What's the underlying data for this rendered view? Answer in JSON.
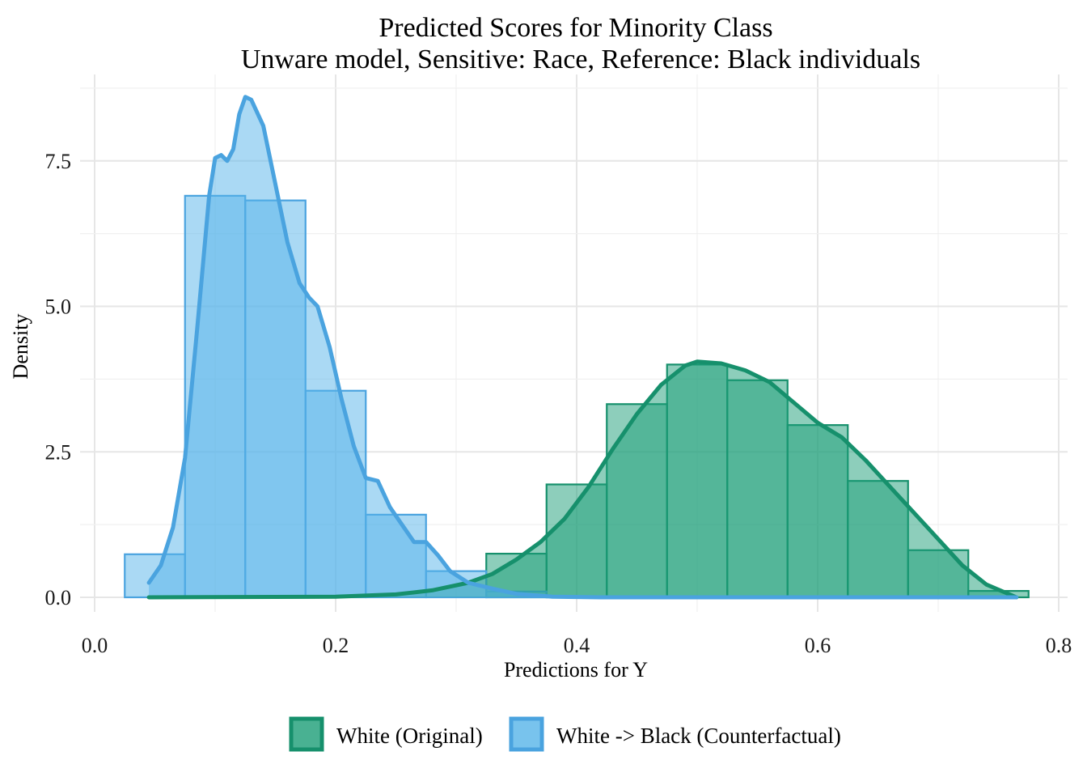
{
  "chart_data": {
    "type": "histogram",
    "title": "Predicted Scores for Minority Class",
    "subtitle": "Unware model, Sensitive: Race, Reference: Black individuals",
    "xlabel": "Predictions for Y",
    "ylabel": "Density",
    "xlim": [
      0.0,
      0.8
    ],
    "ylim": [
      0.0,
      8.6
    ],
    "x_ticks": [
      {
        "value": 0.0,
        "label": "0.0"
      },
      {
        "value": 0.2,
        "label": "0.2"
      },
      {
        "value": 0.4,
        "label": "0.4"
      },
      {
        "value": 0.6,
        "label": "0.6"
      },
      {
        "value": 0.8,
        "label": "0.8"
      }
    ],
    "y_ticks": [
      {
        "value": 0.0,
        "label": "0.0"
      },
      {
        "value": 2.5,
        "label": "2.5"
      },
      {
        "value": 5.0,
        "label": "5.0"
      },
      {
        "value": 7.5,
        "label": "7.5"
      }
    ],
    "grid": true,
    "legend_position": "bottom",
    "bin_width": 0.05,
    "series": [
      {
        "name": "White (Original)",
        "fill": "#1b9e77",
        "line": "#16906c",
        "bins": [
          {
            "x0": 0.325,
            "x1": 0.375,
            "density": 0.75
          },
          {
            "x0": 0.375,
            "x1": 0.425,
            "density": 1.94
          },
          {
            "x0": 0.425,
            "x1": 0.475,
            "density": 3.32
          },
          {
            "x0": 0.475,
            "x1": 0.525,
            "density": 4.0
          },
          {
            "x0": 0.525,
            "x1": 0.575,
            "density": 3.73
          },
          {
            "x0": 0.575,
            "x1": 0.625,
            "density": 2.96
          },
          {
            "x0": 0.625,
            "x1": 0.675,
            "density": 2.0
          },
          {
            "x0": 0.675,
            "x1": 0.725,
            "density": 0.81
          },
          {
            "x0": 0.725,
            "x1": 0.775,
            "density": 0.11
          }
        ],
        "density_curve": [
          [
            0.045,
            0.0
          ],
          [
            0.2,
            0.01
          ],
          [
            0.25,
            0.05
          ],
          [
            0.28,
            0.12
          ],
          [
            0.31,
            0.25
          ],
          [
            0.33,
            0.4
          ],
          [
            0.35,
            0.65
          ],
          [
            0.37,
            0.95
          ],
          [
            0.39,
            1.35
          ],
          [
            0.41,
            1.9
          ],
          [
            0.43,
            2.55
          ],
          [
            0.45,
            3.15
          ],
          [
            0.47,
            3.65
          ],
          [
            0.49,
            3.98
          ],
          [
            0.5,
            4.05
          ],
          [
            0.52,
            4.02
          ],
          [
            0.54,
            3.9
          ],
          [
            0.56,
            3.7
          ],
          [
            0.58,
            3.35
          ],
          [
            0.6,
            3.0
          ],
          [
            0.62,
            2.75
          ],
          [
            0.64,
            2.35
          ],
          [
            0.66,
            1.9
          ],
          [
            0.68,
            1.45
          ],
          [
            0.7,
            1.0
          ],
          [
            0.72,
            0.55
          ],
          [
            0.74,
            0.22
          ],
          [
            0.765,
            0.0
          ]
        ]
      },
      {
        "name": "White -> Black (Counterfactual)",
        "fill": "#56b4e9",
        "line": "#4aa3df",
        "bins": [
          {
            "x0": 0.025,
            "x1": 0.075,
            "density": 0.74
          },
          {
            "x0": 0.075,
            "x1": 0.125,
            "density": 6.9
          },
          {
            "x0": 0.125,
            "x1": 0.175,
            "density": 6.82
          },
          {
            "x0": 0.175,
            "x1": 0.225,
            "density": 3.55
          },
          {
            "x0": 0.225,
            "x1": 0.275,
            "density": 1.42
          },
          {
            "x0": 0.275,
            "x1": 0.325,
            "density": 0.45
          },
          {
            "x0": 0.325,
            "x1": 0.375,
            "density": 0.1
          }
        ],
        "density_curve": [
          [
            0.045,
            0.25
          ],
          [
            0.055,
            0.55
          ],
          [
            0.065,
            1.2
          ],
          [
            0.075,
            2.4
          ],
          [
            0.085,
            4.6
          ],
          [
            0.095,
            6.9
          ],
          [
            0.1,
            7.55
          ],
          [
            0.105,
            7.6
          ],
          [
            0.11,
            7.5
          ],
          [
            0.115,
            7.7
          ],
          [
            0.12,
            8.3
          ],
          [
            0.125,
            8.6
          ],
          [
            0.13,
            8.55
          ],
          [
            0.14,
            8.1
          ],
          [
            0.15,
            7.1
          ],
          [
            0.16,
            6.1
          ],
          [
            0.17,
            5.4
          ],
          [
            0.178,
            5.15
          ],
          [
            0.185,
            5.0
          ],
          [
            0.195,
            4.3
          ],
          [
            0.205,
            3.4
          ],
          [
            0.215,
            2.6
          ],
          [
            0.225,
            2.05
          ],
          [
            0.235,
            2.0
          ],
          [
            0.245,
            1.55
          ],
          [
            0.255,
            1.25
          ],
          [
            0.265,
            0.95
          ],
          [
            0.275,
            0.95
          ],
          [
            0.285,
            0.72
          ],
          [
            0.295,
            0.45
          ],
          [
            0.31,
            0.25
          ],
          [
            0.33,
            0.15
          ],
          [
            0.35,
            0.06
          ],
          [
            0.38,
            0.01
          ],
          [
            0.42,
            0.0
          ],
          [
            0.765,
            0.0
          ]
        ]
      }
    ]
  }
}
